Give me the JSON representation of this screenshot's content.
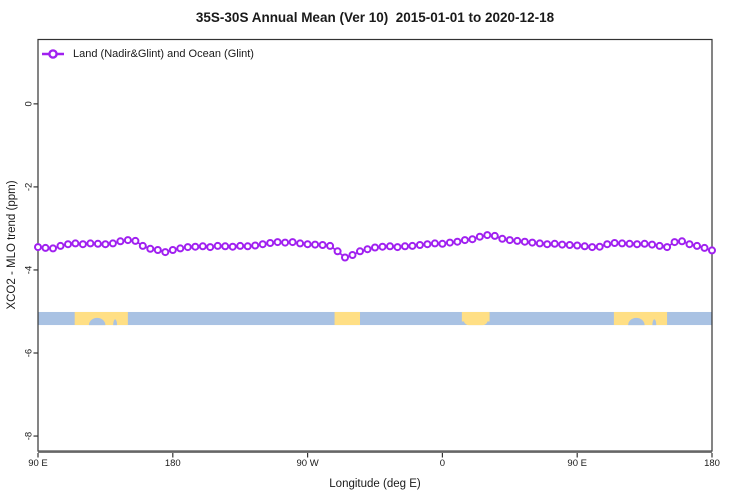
{
  "title": "35S-30S Annual Mean (Ver 10)  2015-01-01 to 2020-12-18",
  "legend": {
    "label": "Land (Nadir&Glint) and Ocean (Glint)",
    "marker": "open-circle-on-line",
    "color": "#A020F0"
  },
  "axes": {
    "x": {
      "label": "Longitude (deg E)",
      "ticks": [
        {
          "value": 90,
          "label": "90 E"
        },
        {
          "value": 180,
          "label": "180"
        },
        {
          "value": 270,
          "label": "90 W"
        },
        {
          "value": 360,
          "label": "0"
        },
        {
          "value": 450,
          "label": "90 E"
        },
        {
          "value": 540,
          "label": "180"
        }
      ]
    },
    "y": {
      "label": "XCO2 - MLO trend (ppm)",
      "ticks": [
        {
          "value": 0,
          "label": "0"
        },
        {
          "value": -2,
          "label": "-2"
        },
        {
          "value": -4,
          "label": "-4"
        },
        {
          "value": -6,
          "label": "-6"
        },
        {
          "value": -8,
          "label": "-8"
        }
      ]
    }
  },
  "chart_data": {
    "type": "line",
    "title": "35S-30S Annual Mean (Ver 10)  2015-01-01 to 2020-12-18",
    "xlabel": "Longitude (deg E)",
    "ylabel": "XCO2 - MLO trend (ppm)",
    "xlim": [
      90,
      540
    ],
    "ylim": [
      -8.36,
      1.55
    ],
    "grid": false,
    "legend_position": "top-left-inside",
    "series": [
      {
        "name": "Land (Nadir&Glint) and Ocean (Glint)",
        "color": "#A020F0",
        "marker": "open-circle",
        "x": [
          90,
          95,
          100,
          105,
          110,
          115,
          120,
          125,
          130,
          135,
          140,
          145,
          150,
          155,
          160,
          165,
          170,
          175,
          180,
          185,
          190,
          195,
          200,
          205,
          210,
          215,
          220,
          225,
          230,
          235,
          240,
          245,
          250,
          255,
          260,
          265,
          270,
          275,
          280,
          285,
          290,
          295,
          300,
          305,
          310,
          315,
          320,
          325,
          330,
          335,
          340,
          345,
          350,
          355,
          360,
          365,
          370,
          375,
          380,
          385,
          390,
          395,
          400,
          405,
          410,
          415,
          420,
          425,
          430,
          435,
          440,
          445,
          450,
          455,
          460,
          465,
          470,
          475,
          480,
          485,
          490,
          495,
          500,
          505,
          510,
          515,
          520,
          525,
          530,
          535,
          540
        ],
        "y": [
          -3.45,
          -3.47,
          -3.48,
          -3.42,
          -3.38,
          -3.36,
          -3.38,
          -3.36,
          -3.37,
          -3.38,
          -3.36,
          -3.31,
          -3.28,
          -3.3,
          -3.42,
          -3.49,
          -3.52,
          -3.57,
          -3.52,
          -3.48,
          -3.45,
          -3.44,
          -3.43,
          -3.45,
          -3.42,
          -3.43,
          -3.44,
          -3.42,
          -3.43,
          -3.41,
          -3.38,
          -3.35,
          -3.33,
          -3.34,
          -3.33,
          -3.36,
          -3.38,
          -3.39,
          -3.4,
          -3.42,
          -3.55,
          -3.7,
          -3.64,
          -3.55,
          -3.5,
          -3.46,
          -3.44,
          -3.43,
          -3.45,
          -3.43,
          -3.42,
          -3.4,
          -3.38,
          -3.36,
          -3.37,
          -3.34,
          -3.32,
          -3.28,
          -3.26,
          -3.2,
          -3.16,
          -3.18,
          -3.25,
          -3.28,
          -3.3,
          -3.32,
          -3.34,
          -3.36,
          -3.38,
          -3.37,
          -3.39,
          -3.4,
          -3.41,
          -3.43,
          -3.45,
          -3.44,
          -3.38,
          -3.35,
          -3.36,
          -3.37,
          -3.38,
          -3.37,
          -3.39,
          -3.42,
          -3.45,
          -3.33,
          -3.31,
          -3.38,
          -3.42,
          -3.47,
          -3.53
        ]
      }
    ],
    "land_ocean_band": {
      "description": "map strip of the 35S-30S latitude band along the longitude axis",
      "y_center_ppm": -5.17,
      "y_half_height_ppm": 0.16,
      "ocean_color": "#A9C2E3",
      "land_color": "#FFDF85",
      "land_segments": [
        {
          "name": "australia",
          "from": 114.5,
          "to": 150,
          "shape": "full"
        },
        {
          "name": "south-america",
          "from": 288,
          "to": 305,
          "shape": "full"
        },
        {
          "name": "southern-africa",
          "from": 373,
          "to": 391.5,
          "shape": "bulge"
        },
        {
          "name": "australia-repeat",
          "from": 474.5,
          "to": 510,
          "shape": "full"
        }
      ],
      "ocean_notches": [
        {
          "name": "great-australian-bight",
          "center": 129.5,
          "half_width": 5.5,
          "depth": 0.55
        },
        {
          "name": "spencer-gulf",
          "center": 141.5,
          "half_width": 1.3,
          "depth": 0.45
        },
        {
          "name": "great-australian-bight-repeat",
          "center": 489.5,
          "half_width": 5.5,
          "depth": 0.55
        },
        {
          "name": "spencer-gulf-repeat",
          "center": 501.5,
          "half_width": 1.3,
          "depth": 0.45
        }
      ]
    }
  },
  "colors": {
    "series": "#A020F0",
    "ocean": "#A9C2E3",
    "land": "#FFDF85",
    "box": "#333333",
    "baseline": "#666666",
    "text": "#1a1a1a"
  }
}
